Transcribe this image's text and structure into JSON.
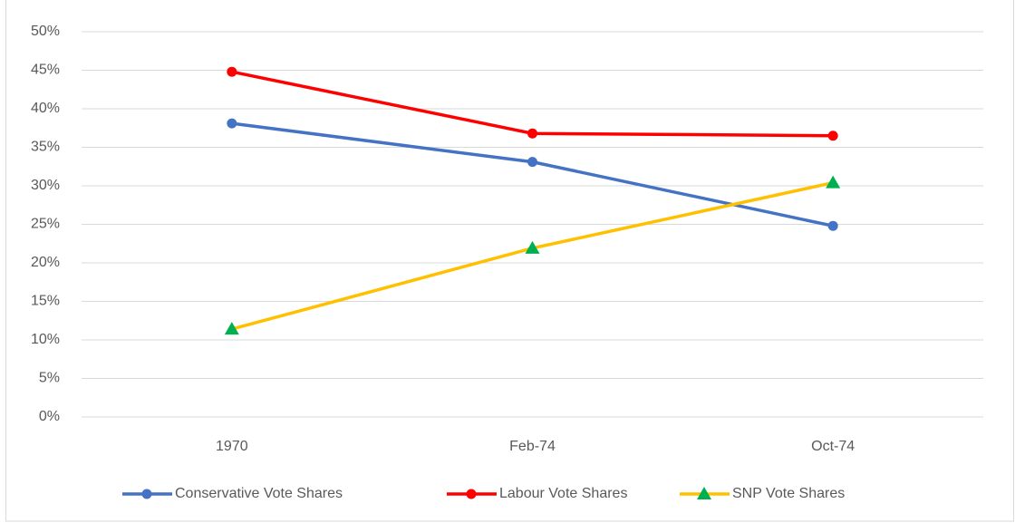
{
  "chart_data": {
    "type": "line",
    "categories": [
      "1970",
      "Feb-74",
      "Oct-74"
    ],
    "series": [
      {
        "name": "Conservative Vote Shares",
        "color": "#4472c4",
        "marker": "circle",
        "marker_color": "#4472c4",
        "values": [
          38.1,
          33.1,
          24.8
        ]
      },
      {
        "name": "Labour Vote Shares",
        "color": "#ff0000",
        "marker": "circle",
        "marker_color": "#ff0000",
        "values": [
          44.8,
          36.8,
          36.5
        ]
      },
      {
        "name": "SNP Vote Shares",
        "color": "#ffc000",
        "marker": "triangle",
        "marker_color": "#00b050",
        "values": [
          11.4,
          21.9,
          30.4
        ]
      }
    ],
    "ylim": [
      0,
      50
    ],
    "yticks": [
      {
        "value": 0,
        "label": "0%"
      },
      {
        "value": 5,
        "label": "5%"
      },
      {
        "value": 10,
        "label": "10%"
      },
      {
        "value": 15,
        "label": "15%"
      },
      {
        "value": 20,
        "label": "20%"
      },
      {
        "value": 25,
        "label": "25%"
      },
      {
        "value": 30,
        "label": "30%"
      },
      {
        "value": 35,
        "label": "35%"
      },
      {
        "value": 40,
        "label": "40%"
      },
      {
        "value": 45,
        "label": "45%"
      },
      {
        "value": 50,
        "label": "50%"
      }
    ],
    "grid": true,
    "legend": "bottom"
  }
}
